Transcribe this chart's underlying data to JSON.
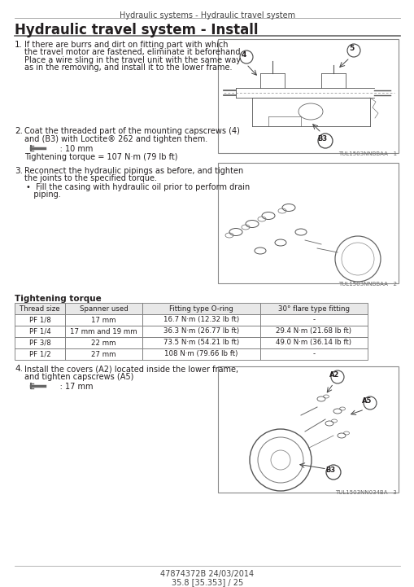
{
  "page_header": "Hydraulic systems - Hydraulic travel system",
  "section_title": "Hydraulic travel system - Install",
  "bg_color": "#ffffff",
  "text_color": "#231f20",
  "steps": [
    {
      "num": "1.",
      "lines": [
        "If there are burrs and dirt on fitting part with which",
        "the travel motor are fastened, eliminate it beforehand.",
        "Place a wire sling in the travel unit with the same way",
        "as in the removing, and install it to the lower frame."
      ]
    },
    {
      "num": "2.",
      "lines": [
        "Coat the threaded part of the mounting capscrews (4)",
        "and (B3) with Loctite® 262 and tighten them."
      ],
      "sub_lines": [
        "     : 10 mm",
        "Tightening torque = 107 N·m (79 lb ft)"
      ]
    },
    {
      "num": "3.",
      "lines": [
        "Reconnect the hydraulic pipings as before, and tighten",
        "the joints to the specified torque."
      ],
      "bullet_lines": [
        "•  Fill the casing with hydraulic oil prior to perform drain",
        "   piping."
      ]
    }
  ],
  "step4": {
    "num": "4.",
    "lines": [
      "Install the covers (A2) located inside the lower frame,",
      "and tighten capscrews (A5)"
    ],
    "sub_lines": [
      "     : 17 mm"
    ]
  },
  "tightening_label": "Tightening torque",
  "table_headers": [
    "Thread size",
    "Spanner used",
    "Fitting type O-ring",
    "30° flare type fitting"
  ],
  "table_rows": [
    [
      "PF 1/8",
      "17 mm",
      "16.7 N·m (12.32 lb ft)",
      "-"
    ],
    [
      "PF 1/4",
      "17 mm and 19 mm",
      "36.3 N·m (26.77 lb ft)",
      "29.4 N·m (21.68 lb ft)"
    ],
    [
      "PF 3/8",
      "22 mm",
      "73.5 N·m (54.21 lb ft)",
      "49.0 N·m (36.14 lb ft)"
    ],
    [
      "PF 1/2",
      "27 mm",
      "108 N·m (79.66 lb ft)",
      "-"
    ]
  ],
  "diagram1_ref": "TUL1503NNBBAA   1",
  "diagram2_ref": "TUL1503NNBBAA   2",
  "diagram3_ref": "TUL1503NN034BA   3",
  "footer_text_1": "47874372B 24/03/2014",
  "footer_text_2": "35.8 [35.353] / 25"
}
